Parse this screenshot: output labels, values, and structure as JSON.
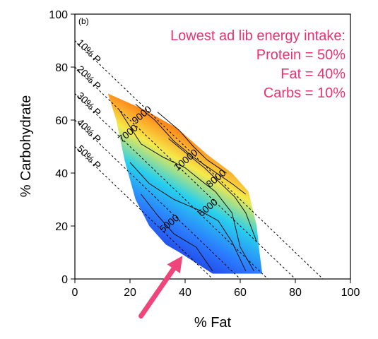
{
  "chart_data": {
    "type": "contour",
    "panel_label": "(b)",
    "xlabel": "% Fat",
    "ylabel": "% Carbohydrate",
    "xlim": [
      0,
      100
    ],
    "ylim": [
      0,
      100
    ],
    "x_ticks": [
      "0",
      "20",
      "40",
      "60",
      "80",
      "100"
    ],
    "y_ticks": [
      "0",
      "20",
      "40",
      "60",
      "80",
      "100"
    ],
    "reference_lines": [
      {
        "label": "10% P",
        "protein_percent": 10
      },
      {
        "label": "20% P",
        "protein_percent": 20
      },
      {
        "label": "30% P",
        "protein_percent": 30
      },
      {
        "label": "40% P",
        "protein_percent": 40
      },
      {
        "label": "50% P",
        "protein_percent": 50
      }
    ],
    "region_polygon": [
      [
        12,
        70
      ],
      [
        25,
        64
      ],
      [
        37,
        57
      ],
      [
        48,
        47
      ],
      [
        57,
        40
      ],
      [
        63,
        33
      ],
      [
        66,
        20
      ],
      [
        67,
        10
      ],
      [
        68,
        2
      ],
      [
        50,
        2
      ],
      [
        38,
        10
      ],
      [
        33,
        13
      ],
      [
        27,
        20
      ],
      [
        22,
        30
      ],
      [
        18,
        45
      ],
      [
        15,
        60
      ]
    ],
    "contours": [
      {
        "label": "5000",
        "label_pos": [
          35,
          20
        ],
        "points": [
          [
            24,
            32
          ],
          [
            30,
            24
          ],
          [
            36,
            17
          ],
          [
            44,
            12
          ],
          [
            50,
            3
          ]
        ]
      },
      {
        "label": "6000",
        "label_pos": [
          49,
          26
        ],
        "points": [
          [
            20,
            44
          ],
          [
            27,
            36
          ],
          [
            36,
            30
          ],
          [
            45,
            26
          ],
          [
            52,
            22
          ],
          [
            57,
            14
          ],
          [
            62,
            3
          ]
        ]
      },
      {
        "label": "7000",
        "label_pos": [
          20,
          54
        ],
        "points": [
          [
            16,
            64
          ],
          [
            24,
            51
          ],
          [
            32,
            46
          ],
          [
            40,
            42
          ],
          [
            46,
            37
          ],
          [
            51,
            33
          ],
          [
            57,
            25
          ],
          [
            60,
            12
          ],
          [
            65,
            3
          ]
        ]
      },
      {
        "label": "8000",
        "label_pos": [
          52,
          37
        ],
        "points": [
          [
            34,
            53
          ],
          [
            41,
            47
          ],
          [
            47,
            42
          ],
          [
            53,
            36
          ],
          [
            58,
            31
          ],
          [
            62,
            25
          ],
          [
            66,
            14
          ]
        ]
      },
      {
        "label": "9000",
        "label_pos": [
          25,
          61
        ],
        "points": [
          [
            22,
            66
          ],
          [
            29,
            60
          ],
          [
            36,
            52
          ],
          [
            43,
            46
          ],
          [
            50,
            41
          ],
          [
            57,
            36
          ],
          [
            62,
            32
          ]
        ]
      },
      {
        "label": "10000",
        "label_pos": [
          41,
          44
        ],
        "points": [
          [
            30,
            63
          ],
          [
            38,
            56
          ],
          [
            43,
            50
          ],
          [
            48,
            45
          ],
          [
            55,
            40
          ]
        ]
      }
    ],
    "annotation": {
      "lines": [
        "Lowest ad lib energy intake:",
        "Protein = 50%",
        "Fat = 40%",
        "Carbs = 10%"
      ],
      "color": "#e8336f"
    },
    "arrow": {
      "tip": [
        40,
        10
      ],
      "tail": [
        24,
        -14
      ],
      "color": "#f0457a"
    },
    "colors": [
      "#1a1fd6",
      "#2b7bff",
      "#28d0ec",
      "#f5e94a",
      "#ff8a1a",
      "#d92a1a"
    ]
  }
}
